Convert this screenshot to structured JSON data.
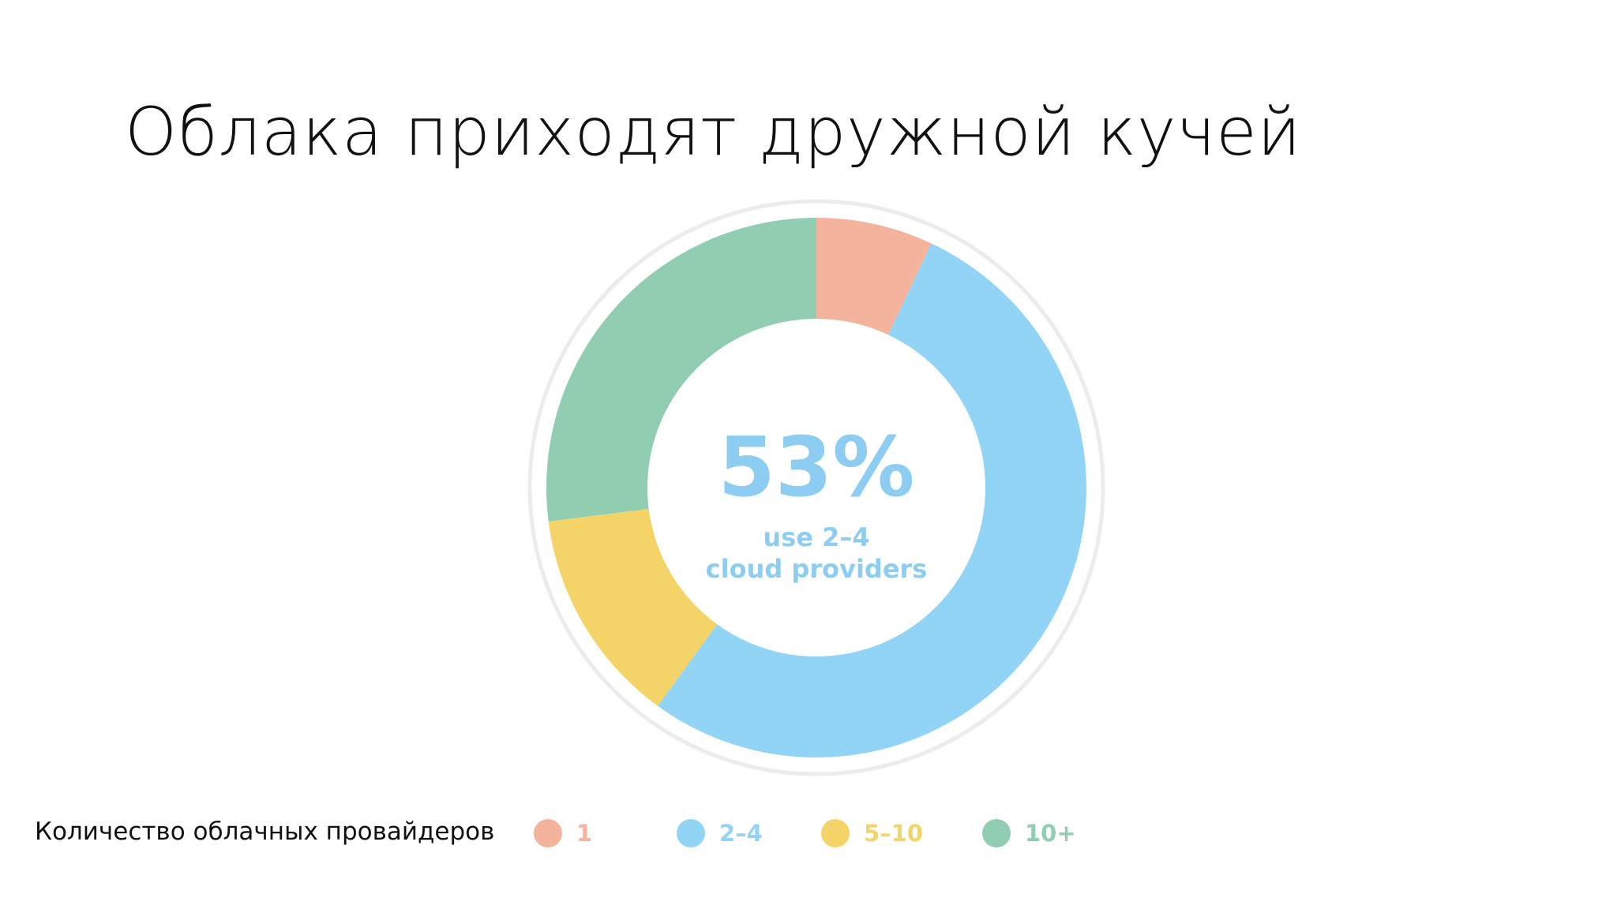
{
  "slide": {
    "title": "Облака приходят дружной кучей",
    "legend_title": "Количество облачных провайдеров"
  },
  "chart_data": {
    "type": "pie",
    "subtype": "donut",
    "center_text": {
      "value": "53%",
      "line1": "use 2–4",
      "line2": "cloud providers"
    },
    "categories": [
      "1",
      "2–4",
      "5–10",
      "10+"
    ],
    "values": [
      7,
      53,
      13,
      27
    ],
    "colors": [
      "#f4b39c",
      "#92d4f6",
      "#f4d468",
      "#91cdb1"
    ],
    "center_text_color": "#8ccdf1",
    "legend_placement": "bottom"
  }
}
